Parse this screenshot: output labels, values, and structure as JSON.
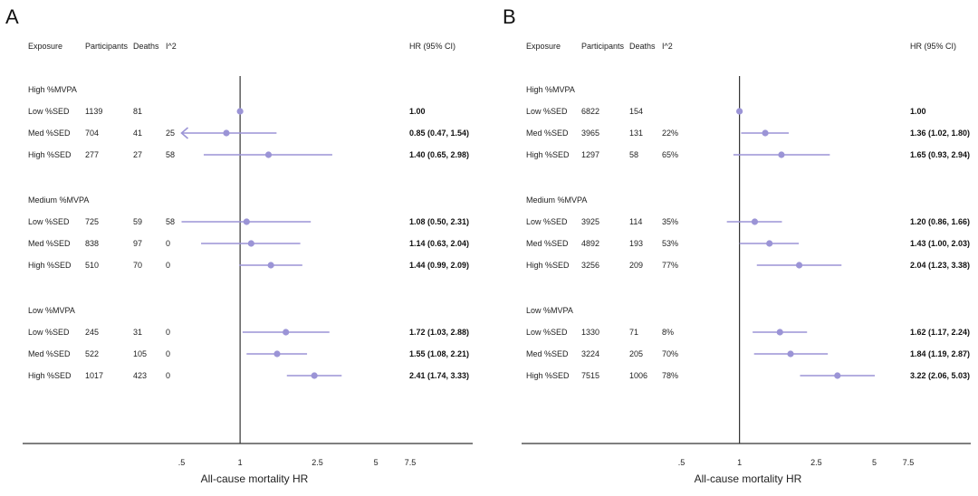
{
  "chart_data": [
    {
      "type": "forest",
      "panel": "A",
      "columns": [
        "Exposure",
        "Participants",
        "Deaths",
        "I^2",
        "HR (95% CI)"
      ],
      "xlabel": "All-cause mortality HR",
      "x_ticks": [
        ".5",
        "1",
        "2.5",
        "5",
        "7.5"
      ],
      "x_tick_values": [
        0.5,
        1,
        2.5,
        5,
        7.5
      ],
      "reference_line": 1,
      "groups": [
        {
          "name": "High %MVPA",
          "rows": [
            {
              "exposure": "Low %SED",
              "participants": "1139",
              "deaths": "81",
              "i2": "",
              "hr": 1.0,
              "lo": 1.0,
              "hi": 1.0,
              "hr_text": "1.00"
            },
            {
              "exposure": "Med %SED",
              "participants": "704",
              "deaths": "41",
              "i2": "25",
              "hr": 0.85,
              "lo": 0.47,
              "hi": 1.54,
              "hr_text": "0.85 (0.47, 1.54)"
            },
            {
              "exposure": "High %SED",
              "participants": "277",
              "deaths": "27",
              "i2": "58",
              "hr": 1.4,
              "lo": 0.65,
              "hi": 2.98,
              "hr_text": "1.40 (0.65, 2.98)"
            }
          ]
        },
        {
          "name": "Medium %MVPA",
          "rows": [
            {
              "exposure": "Low %SED",
              "participants": "725",
              "deaths": "59",
              "i2": "58",
              "hr": 1.08,
              "lo": 0.5,
              "hi": 2.31,
              "hr_text": "1.08 (0.50, 2.31)"
            },
            {
              "exposure": "Med %SED",
              "participants": "838",
              "deaths": "97",
              "i2": "0",
              "hr": 1.14,
              "lo": 0.63,
              "hi": 2.04,
              "hr_text": "1.14 (0.63, 2.04)"
            },
            {
              "exposure": "High %SED",
              "participants": "510",
              "deaths": "70",
              "i2": "0",
              "hr": 1.44,
              "lo": 0.99,
              "hi": 2.09,
              "hr_text": "1.44 (0.99, 2.09)"
            }
          ]
        },
        {
          "name": "Low %MVPA",
          "rows": [
            {
              "exposure": "Low %SED",
              "participants": "245",
              "deaths": "31",
              "i2": "0",
              "hr": 1.72,
              "lo": 1.03,
              "hi": 2.88,
              "hr_text": "1.72 (1.03, 2.88)"
            },
            {
              "exposure": "Med %SED",
              "participants": "522",
              "deaths": "105",
              "i2": "0",
              "hr": 1.55,
              "lo": 1.08,
              "hi": 2.21,
              "hr_text": "1.55 (1.08, 2.21)"
            },
            {
              "exposure": "High %SED",
              "participants": "1017",
              "deaths": "423",
              "i2": "0",
              "hr": 2.41,
              "lo": 1.74,
              "hi": 3.33,
              "hr_text": "2.41 (1.74, 3.33)"
            }
          ]
        }
      ]
    },
    {
      "type": "forest",
      "panel": "B",
      "columns": [
        "Exposure",
        "Participants",
        "Deaths",
        "I^2",
        "HR (95% CI)"
      ],
      "xlabel": "All-cause mortality HR",
      "x_ticks": [
        ".5",
        "1",
        "2.5",
        "5",
        "7.5"
      ],
      "x_tick_values": [
        0.5,
        1,
        2.5,
        5,
        7.5
      ],
      "reference_line": 1,
      "groups": [
        {
          "name": "High %MVPA",
          "rows": [
            {
              "exposure": "Low %SED",
              "participants": "6822",
              "deaths": "154",
              "i2": "",
              "hr": 1.0,
              "lo": 1.0,
              "hi": 1.0,
              "hr_text": "1.00"
            },
            {
              "exposure": "Med %SED",
              "participants": "3965",
              "deaths": "131",
              "i2": "22%",
              "hr": 1.36,
              "lo": 1.02,
              "hi": 1.8,
              "hr_text": "1.36 (1.02, 1.80)"
            },
            {
              "exposure": "High %SED",
              "participants": "1297",
              "deaths": "58",
              "i2": "65%",
              "hr": 1.65,
              "lo": 0.93,
              "hi": 2.94,
              "hr_text": "1.65 (0.93, 2.94)"
            }
          ]
        },
        {
          "name": "Medium %MVPA",
          "rows": [
            {
              "exposure": "Low %SED",
              "participants": "3925",
              "deaths": "114",
              "i2": "35%",
              "hr": 1.2,
              "lo": 0.86,
              "hi": 1.66,
              "hr_text": "1.20 (0.86, 1.66)"
            },
            {
              "exposure": "Med %SED",
              "participants": "4892",
              "deaths": "193",
              "i2": "53%",
              "hr": 1.43,
              "lo": 1.0,
              "hi": 2.03,
              "hr_text": "1.43 (1.00, 2.03)"
            },
            {
              "exposure": "High %SED",
              "participants": "3256",
              "deaths": "209",
              "i2": "77%",
              "hr": 2.04,
              "lo": 1.23,
              "hi": 3.38,
              "hr_text": "2.04 (1.23, 3.38)"
            }
          ]
        },
        {
          "name": "Low %MVPA",
          "rows": [
            {
              "exposure": "Low %SED",
              "participants": "1330",
              "deaths": "71",
              "i2": "8%",
              "hr": 1.62,
              "lo": 1.17,
              "hi": 2.24,
              "hr_text": "1.62 (1.17, 2.24)"
            },
            {
              "exposure": "Med %SED",
              "participants": "3224",
              "deaths": "205",
              "i2": "70%",
              "hr": 1.84,
              "lo": 1.19,
              "hi": 2.87,
              "hr_text": "1.84 (1.19, 2.87)"
            },
            {
              "exposure": "High %SED",
              "participants": "7515",
              "deaths": "1006",
              "i2": "78%",
              "hr": 3.22,
              "lo": 2.06,
              "hi": 5.03,
              "hr_text": "3.22 (2.06, 5.03)"
            }
          ]
        }
      ]
    }
  ],
  "colors": {
    "marker": "#9b94d6",
    "line": "#9b94d6",
    "text": "#222222",
    "axis": "#333333"
  }
}
